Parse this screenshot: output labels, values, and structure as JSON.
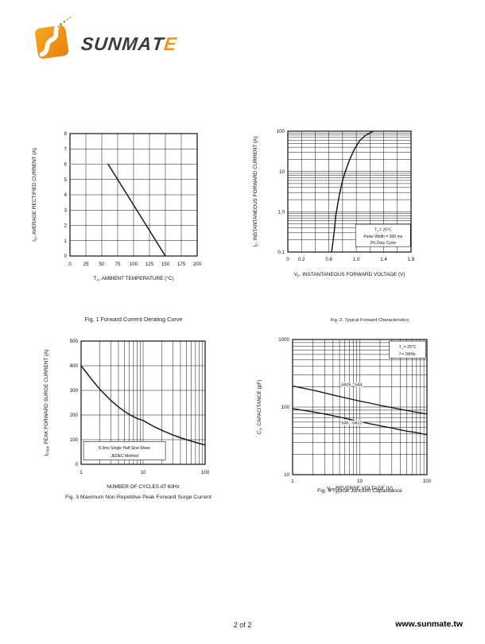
{
  "brand": {
    "name": "SUNMATE",
    "accent_color": "#F7941D"
  },
  "footer": {
    "page_indicator": "2 of 2",
    "website": "www.sunmate.tw"
  },
  "chart_data": [
    {
      "type": "line",
      "title": "Fig. 1  Forward Current Derating Curve",
      "xlabel": "T_{A}, AMBIENT TEMPERATURE (°C)",
      "ylabel": "I_{O}, AVERAGE RECTIFIED CURRENT (A)",
      "x": {
        "scale": "linear",
        "min": 0,
        "max": 200,
        "grid_step": 25,
        "ticks": [
          {
            "v": 0,
            "label": "0"
          },
          {
            "v": 25,
            "label": "25"
          },
          {
            "v": 50,
            "label": "50"
          },
          {
            "v": 75,
            "label": "75"
          },
          {
            "v": 100,
            "label": "100"
          },
          {
            "v": 125,
            "label": "125"
          },
          {
            "v": 150,
            "label": "150"
          },
          {
            "v": 175,
            "label": "175"
          },
          {
            "v": 200,
            "label": "200"
          }
        ]
      },
      "y": {
        "scale": "linear",
        "min": 0,
        "max": 8,
        "grid_step": 1,
        "ticks": [
          {
            "v": 0,
            "label": "0"
          },
          {
            "v": 1,
            "label": "1"
          },
          {
            "v": 2,
            "label": "2"
          },
          {
            "v": 3,
            "label": "3"
          },
          {
            "v": 4,
            "label": "4"
          },
          {
            "v": 5,
            "label": "5"
          },
          {
            "v": 6,
            "label": "6"
          },
          {
            "v": 7,
            "label": "7"
          },
          {
            "v": 8,
            "label": "8"
          }
        ]
      },
      "series": [
        {
          "name": "rated-current-plateau",
          "color": "#9e9e9e",
          "width": 1.3,
          "points": [
            [
              0,
              6
            ],
            [
              60,
              6
            ]
          ]
        },
        {
          "name": "derating-slope",
          "color": "#1a1a1a",
          "width": 1.5,
          "points": [
            [
              60,
              6
            ],
            [
              150,
              0
            ]
          ]
        }
      ]
    },
    {
      "type": "line",
      "title": "Fig. 2, Typical Forward Characteristics",
      "xlabel": "V_{F}, INSTANTANEOUS FORWARD VOLTAGE (V)",
      "ylabel": "I_{F}, INSTANTANEOUS FORWARD CURRENT (A)",
      "x": {
        "scale": "linear",
        "min": 0,
        "max": 1.8,
        "grid_step": 0.2,
        "ticks": [
          {
            "v": 0,
            "label": "0"
          },
          {
            "v": 0.2,
            "label": "0.2"
          },
          {
            "v": 0.6,
            "label": "0.6"
          },
          {
            "v": 1.0,
            "label": "1.0"
          },
          {
            "v": 1.4,
            "label": "1.4"
          },
          {
            "v": 1.8,
            "label": "1.8"
          }
        ]
      },
      "y": {
        "scale": "log",
        "min": 0.1,
        "max": 100,
        "ticks": [
          {
            "v": 0.1,
            "label": "0.1"
          },
          {
            "v": 1,
            "label": "1.0"
          },
          {
            "v": 10,
            "label": "10"
          },
          {
            "v": 100,
            "label": "100"
          }
        ]
      },
      "series": [
        {
          "name": "typical-forward-characteristic",
          "color": "#1a1a1a",
          "width": 1.5,
          "points": [
            [
              0.64,
              0.1
            ],
            [
              0.66,
              0.18
            ],
            [
              0.68,
              0.35
            ],
            [
              0.7,
              0.8
            ],
            [
              0.73,
              1.6
            ],
            [
              0.76,
              3.0
            ],
            [
              0.8,
              6.0
            ],
            [
              0.84,
              10
            ],
            [
              0.9,
              19
            ],
            [
              0.97,
              35
            ],
            [
              1.05,
              58
            ],
            [
              1.13,
              78
            ],
            [
              1.25,
              100
            ]
          ]
        }
      ],
      "annotations": [
        {
          "lines": [
            "T_{J} = 25°C",
            "Pulse Width = 300 ms",
            "2% Duty Cycle"
          ],
          "fx": 0.55,
          "fy": 0.77,
          "fw": 0.445,
          "fh": 0.185
        }
      ]
    },
    {
      "type": "line",
      "title": "Fig. 3  Maximum Non-Repetitive Peak Forward Surge Current",
      "xlabel": "NUMBER OF CYCLES AT 60Hz",
      "ylabel": "I_{FSM}, PEAK FORWARD SURGE CURRENT (A)",
      "x": {
        "scale": "log",
        "min": 1,
        "max": 100,
        "ticks": [
          {
            "v": 1,
            "label": "1"
          },
          {
            "v": 10,
            "label": "10"
          },
          {
            "v": 100,
            "label": "100"
          }
        ]
      },
      "y": {
        "scale": "linear",
        "min": 0,
        "max": 500,
        "grid_step": 100,
        "ticks": [
          {
            "v": 0,
            "label": "0"
          },
          {
            "v": 100,
            "label": "100"
          },
          {
            "v": 200,
            "label": "200"
          },
          {
            "v": 300,
            "label": "300"
          },
          {
            "v": 400,
            "label": "400"
          },
          {
            "v": 500,
            "label": "500"
          }
        ]
      },
      "series": [
        {
          "name": "peak-forward-surge-current",
          "color": "#1a1a1a",
          "width": 1.5,
          "points": [
            [
              1,
              400
            ],
            [
              1.5,
              343
            ],
            [
              2,
              305
            ],
            [
              3,
              260
            ],
            [
              4,
              233
            ],
            [
              5,
              215
            ],
            [
              6,
              202
            ],
            [
              8,
              186
            ],
            [
              10,
              178
            ],
            [
              15,
              153
            ],
            [
              20,
              138
            ],
            [
              30,
              119
            ],
            [
              40,
              108
            ],
            [
              50,
              100
            ],
            [
              70,
              89
            ],
            [
              100,
              78
            ]
          ]
        }
      ],
      "annotations": [
        {
          "lines": [
            "8.3ms Single Half Sine-Wave",
            "JEDEC Method"
          ],
          "fx": 0.02,
          "fy": 0.815,
          "fw": 0.66,
          "fh": 0.15
        }
      ]
    },
    {
      "type": "line",
      "title": "Fig. 4  Typical Junction Capacitance",
      "xlabel": "V_{R}, REVERSE VOLTAGE (V)",
      "ylabel": "C_{J}, CAPACITANCE (pF)",
      "x": {
        "scale": "log",
        "min": 1,
        "max": 100,
        "ticks": [
          {
            "v": 1,
            "label": "1"
          },
          {
            "v": 10,
            "label": "10"
          },
          {
            "v": 100,
            "label": "100"
          }
        ]
      },
      "y": {
        "scale": "log",
        "min": 10,
        "max": 1000,
        "ticks": [
          {
            "v": 10,
            "label": "10"
          },
          {
            "v": 100,
            "label": "100"
          },
          {
            "v": 1000,
            "label": "1000"
          }
        ]
      },
      "series": [
        {
          "name": "6A05 - 6A4",
          "color": "#1a1a1a",
          "width": 1.4,
          "points": [
            [
              1,
              205
            ],
            [
              2,
              178
            ],
            [
              3,
              162
            ],
            [
              5,
              143
            ],
            [
              7,
              133
            ],
            [
              10,
              123
            ],
            [
              15,
              113
            ],
            [
              20,
              106
            ],
            [
              30,
              98
            ],
            [
              50,
              89
            ],
            [
              70,
              84
            ],
            [
              100,
              79
            ]
          ],
          "label": {
            "text": "6A05 - 6A4",
            "fx": 0.44,
            "fy": 0.345
          }
        },
        {
          "name": "6A6 - 6A10",
          "color": "#1a1a1a",
          "width": 1.4,
          "points": [
            [
              1,
              95
            ],
            [
              2,
              85
            ],
            [
              3,
              79
            ],
            [
              5,
              71
            ],
            [
              7,
              66
            ],
            [
              10,
              61
            ],
            [
              15,
              56
            ],
            [
              20,
              53
            ],
            [
              30,
              49
            ],
            [
              50,
              44
            ],
            [
              70,
              42
            ],
            [
              100,
              39
            ]
          ],
          "label": {
            "text": "6A6 - 6A10",
            "fx": 0.44,
            "fy": 0.625
          }
        }
      ],
      "annotations": [
        {
          "lines": [
            "T_{J} = 25°C",
            "f = 1MHz"
          ],
          "fx": 0.72,
          "fy": 0.012,
          "fw": 0.27,
          "fh": 0.125
        }
      ]
    }
  ]
}
